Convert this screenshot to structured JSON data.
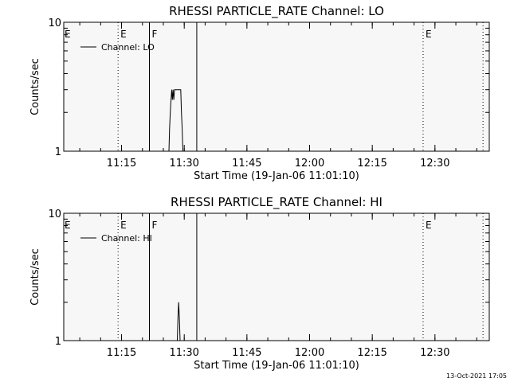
{
  "timestamp": "13-Oct-2021 17:05",
  "chart_data": [
    {
      "type": "line",
      "title": "RHESSI PARTICLE_RATE Channel: LO",
      "xlabel": "Start Time (19-Jan-06 11:01:10)",
      "ylabel": "Counts/sec",
      "yscale": "log",
      "ylim": [
        1,
        10
      ],
      "yticks": [
        "1",
        "10"
      ],
      "xlim": [
        "11:01:10",
        "12:43:00"
      ],
      "xticks": [
        "11:15",
        "11:30",
        "11:45",
        "12:00",
        "12:15",
        "12:30"
      ],
      "legend": "top-left",
      "series": [
        {
          "name": "Channel: LO",
          "x": [
            "11:26:20",
            "11:26:30",
            "11:26:40",
            "11:26:50",
            "11:27:00",
            "11:27:10",
            "11:27:20",
            "11:27:30",
            "11:27:40",
            "11:27:50",
            "11:28:10",
            "11:28:40",
            "11:29:10",
            "11:29:20",
            "11:29:30",
            "11:29:40"
          ],
          "y": [
            1,
            1.5,
            2,
            2.5,
            3,
            2.5,
            3,
            2.5,
            3,
            3,
            3,
            3,
            3,
            2,
            1.5,
            1
          ]
        }
      ],
      "vlines": [
        {
          "time": "11:14:10",
          "style": "dotted",
          "label": "E"
        },
        {
          "time": "11:21:40",
          "style": "solid",
          "label": "F"
        },
        {
          "time": "11:33:00",
          "style": "solid",
          "label": ""
        },
        {
          "time": "12:27:10",
          "style": "dotted",
          "label": "E"
        },
        {
          "time": "12:41:30",
          "style": "dotted",
          "label": ""
        }
      ],
      "edge_label": "E"
    },
    {
      "type": "line",
      "title": "RHESSI PARTICLE_RATE Channel: HI",
      "xlabel": "Start Time (19-Jan-06 11:01:10)",
      "ylabel": "Counts/sec",
      "yscale": "log",
      "ylim": [
        1,
        10
      ],
      "yticks": [
        "1",
        "10"
      ],
      "xlim": [
        "11:01:10",
        "12:43:00"
      ],
      "xticks": [
        "11:15",
        "11:30",
        "11:45",
        "12:00",
        "12:15",
        "12:30"
      ],
      "legend": "top-left",
      "series": [
        {
          "name": "Channel: HI",
          "x": [
            "11:28:20",
            "11:28:30",
            "11:28:40",
            "11:28:50",
            "11:29:00"
          ],
          "y": [
            1,
            1.5,
            2,
            1.5,
            1
          ]
        }
      ],
      "vlines": [
        {
          "time": "11:14:10",
          "style": "dotted",
          "label": "E"
        },
        {
          "time": "11:21:40",
          "style": "solid",
          "label": "F"
        },
        {
          "time": "11:33:00",
          "style": "solid",
          "label": ""
        },
        {
          "time": "12:27:10",
          "style": "dotted",
          "label": "E"
        },
        {
          "time": "12:41:30",
          "style": "dotted",
          "label": ""
        }
      ],
      "edge_label": "E"
    }
  ]
}
